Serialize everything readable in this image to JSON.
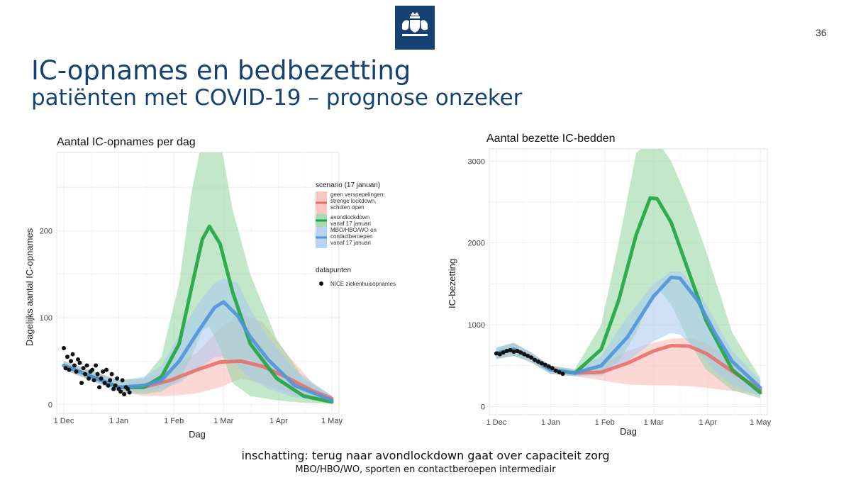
{
  "slide": {
    "page_number": "36",
    "title": "IC-opnames en bedbezetting",
    "subtitle": "patiënten met COVID-19 – prognose onzeker",
    "footnote_main": "inschatting: terug naar avondlockdown gaat over capaciteit zorg",
    "footnote_sub": "MBO/HBO/WO, sporten en contactberoepen intermediair",
    "brand_color": "#154273"
  },
  "legend": {
    "scenario_title": "scenario (17 januari)",
    "datapunten_title": "datapunten",
    "datapunten_label": "NICE ziekenhuisopnames",
    "items": [
      {
        "lines": [
          "geen versoepelingen:",
          "strenge lockdown,",
          "scholen open"
        ],
        "color": "#e8706a",
        "fill": "#f7b8b3"
      },
      {
        "lines": [
          "avondlockdown",
          "vanaf 17 januari"
        ],
        "color": "#1fa53f",
        "fill": "#8fd59c"
      },
      {
        "lines": [
          "MBO/HBO/WO en",
          "contactberoepen",
          "vanaf 17 januari"
        ],
        "color": "#4f95dc",
        "fill": "#a9c8f0"
      }
    ]
  },
  "chart_data": [
    {
      "type": "line",
      "title": "Aantal IC-opnames per dag",
      "xlabel": "Dag",
      "ylabel": "Dagelijks aantal IC-opnames",
      "x_ticks": [
        "1 Dec",
        "1 Jan",
        "1 Feb",
        "1 Mar",
        "1 Apr",
        "1 May"
      ],
      "x_tick_days": [
        0,
        31,
        62,
        90,
        121,
        151
      ],
      "y_ticks": [
        0,
        100,
        200
      ],
      "ylim": [
        -10,
        290
      ],
      "grid": true,
      "series": [
        {
          "name": "geen versoepelingen: strenge lockdown, scholen open",
          "color": "#e8706a",
          "x": [
            0,
            31,
            45,
            60,
            75,
            88,
            100,
            112,
            125,
            140,
            151
          ],
          "y": [
            45,
            20,
            20,
            28,
            40,
            49,
            50,
            44,
            32,
            16,
            7
          ],
          "lower": [
            40,
            15,
            10,
            10,
            13,
            20,
            30,
            24,
            14,
            5,
            1
          ],
          "upper": [
            50,
            28,
            30,
            40,
            60,
            88,
            105,
            95,
            60,
            25,
            10
          ]
        },
        {
          "name": "avondlockdown vanaf 17 januari",
          "color": "#1fa53f",
          "x": [
            0,
            31,
            45,
            55,
            65,
            72,
            78,
            82,
            88,
            95,
            105,
            120,
            135,
            151
          ],
          "y": [
            45,
            20,
            20,
            32,
            70,
            135,
            190,
            205,
            185,
            130,
            70,
            30,
            10,
            3
          ],
          "lower": [
            40,
            15,
            12,
            15,
            28,
            55,
            85,
            90,
            65,
            25,
            10,
            5,
            2,
            1
          ],
          "upper": [
            50,
            28,
            30,
            55,
            140,
            245,
            305,
            305,
            305,
            225,
            150,
            75,
            30,
            10
          ],
          "clip_top": 285
        },
        {
          "name": "MBO/HBO/WO en contactberoepen vanaf 17 januari",
          "color": "#4f95dc",
          "x": [
            0,
            31,
            45,
            55,
            65,
            75,
            85,
            90,
            98,
            105,
            115,
            130,
            151
          ],
          "y": [
            45,
            20,
            22,
            28,
            50,
            82,
            112,
            118,
            102,
            78,
            52,
            22,
            5
          ],
          "lower": [
            40,
            15,
            15,
            18,
            25,
            40,
            55,
            55,
            45,
            30,
            18,
            8,
            2
          ],
          "upper": [
            50,
            28,
            32,
            45,
            80,
            115,
            140,
            145,
            140,
            110,
            78,
            40,
            10
          ]
        }
      ],
      "observed": {
        "name": "NICE ziekenhuisopnames",
        "x": [
          0,
          1,
          2,
          3,
          4,
          5,
          6,
          7,
          8,
          9,
          10,
          11,
          12,
          13,
          14,
          15,
          16,
          17,
          18,
          19,
          20,
          21,
          22,
          23,
          24,
          25,
          26,
          27,
          28,
          29,
          30,
          31,
          32,
          33,
          34,
          35,
          36,
          37
        ],
        "y": [
          65,
          42,
          55,
          40,
          50,
          58,
          45,
          38,
          52,
          48,
          25,
          42,
          35,
          45,
          30,
          38,
          40,
          28,
          45,
          35,
          20,
          30,
          38,
          25,
          40,
          22,
          28,
          35,
          18,
          22,
          30,
          18,
          15,
          28,
          12,
          20,
          18,
          14
        ]
      }
    },
    {
      "type": "line",
      "title": "Aantal bezette IC-bedden",
      "xlabel": "Dag",
      "ylabel": "IC-bezetting",
      "x_ticks": [
        "1 Dec",
        "1 Jan",
        "1 Feb",
        "1 Mar",
        "1 Apr",
        "1 May"
      ],
      "x_tick_days": [
        0,
        31,
        62,
        90,
        121,
        151
      ],
      "y_ticks": [
        0,
        1000,
        2000,
        3000
      ],
      "ylim": [
        -100,
        3150
      ],
      "grid": true,
      "series": [
        {
          "name": "geen versoepelingen: strenge lockdown, scholen open",
          "color": "#e8706a",
          "x": [
            0,
            10,
            20,
            31,
            45,
            60,
            75,
            90,
            100,
            110,
            120,
            135,
            151
          ],
          "y": [
            650,
            700,
            600,
            450,
            410,
            420,
            530,
            680,
            745,
            740,
            650,
            430,
            200
          ],
          "lower": [
            580,
            620,
            540,
            400,
            370,
            320,
            270,
            260,
            260,
            250,
            230,
            190,
            150
          ],
          "upper": [
            720,
            780,
            660,
            500,
            450,
            520,
            680,
            780,
            830,
            840,
            780,
            560,
            280
          ]
        },
        {
          "name": "avondlockdown vanaf 17 januari",
          "color": "#1fa53f",
          "x": [
            0,
            10,
            20,
            31,
            45,
            60,
            70,
            80,
            88,
            92,
            100,
            110,
            120,
            135,
            151
          ],
          "y": [
            650,
            700,
            600,
            450,
            410,
            700,
            1300,
            2100,
            2550,
            2540,
            2250,
            1650,
            1050,
            450,
            170
          ],
          "lower": [
            580,
            620,
            540,
            400,
            370,
            420,
            550,
            900,
            1300,
            1450,
            1250,
            800,
            450,
            200,
            100
          ],
          "upper": [
            720,
            780,
            660,
            500,
            460,
            1000,
            2000,
            3100,
            3250,
            3250,
            3000,
            2500,
            1900,
            900,
            350
          ],
          "clip_top": 3150
        },
        {
          "name": "MBO/HBO/WO en contactberoepen vanaf 17 januari",
          "color": "#4f95dc",
          "x": [
            0,
            10,
            20,
            31,
            45,
            60,
            75,
            90,
            100,
            105,
            115,
            125,
            135,
            151
          ],
          "y": [
            650,
            700,
            600,
            450,
            410,
            500,
            850,
            1350,
            1580,
            1570,
            1300,
            900,
            550,
            230
          ],
          "lower": [
            580,
            620,
            540,
            400,
            370,
            380,
            550,
            800,
            900,
            880,
            680,
            430,
            260,
            120
          ],
          "upper": [
            720,
            780,
            660,
            500,
            450,
            620,
            1100,
            1500,
            1650,
            1650,
            1450,
            1050,
            680,
            320
          ]
        }
      ],
      "observed": {
        "name": "NICE ziekenhuisopnames",
        "x": [
          0,
          2,
          4,
          6,
          8,
          10,
          12,
          14,
          16,
          18,
          20,
          22,
          24,
          26,
          28,
          30,
          32,
          34,
          36,
          38
        ],
        "y": [
          650,
          640,
          660,
          680,
          690,
          670,
          680,
          660,
          640,
          620,
          600,
          570,
          550,
          530,
          510,
          490,
          470,
          440,
          420,
          400
        ]
      }
    }
  ]
}
